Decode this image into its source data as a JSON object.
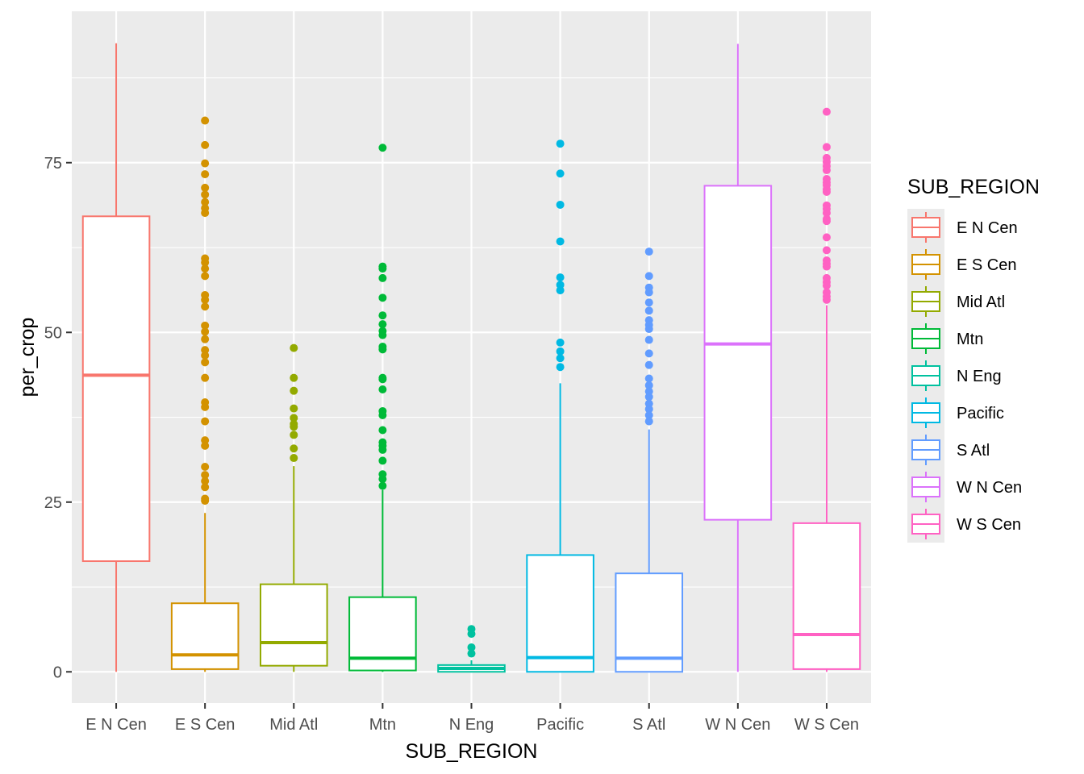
{
  "chart_data": {
    "type": "boxplot",
    "title": "",
    "xlabel": "SUB_REGION",
    "ylabel": "per_crop",
    "ylim": [
      -4.6,
      97.3
    ],
    "yticks": [
      0,
      25,
      50,
      75
    ],
    "grid": true,
    "legend": {
      "title": "SUB_REGION",
      "placement": "right"
    },
    "categories": [
      "E N Cen",
      "E S Cen",
      "Mid Atl",
      "Mtn",
      "N Eng",
      "Pacific",
      "S Atl",
      "W N Cen",
      "W S Cen"
    ],
    "colors": [
      "#F8766D",
      "#D39200",
      "#93AA00",
      "#00BA38",
      "#00C19F",
      "#00B9E3",
      "#619CFF",
      "#DB72FB",
      "#FF61C3"
    ],
    "series": [
      {
        "name": "E N Cen",
        "whisker_low": 0,
        "q1": 16.3,
        "median": 43.7,
        "q3": 67.1,
        "whisker_high": 92.6,
        "outliers": []
      },
      {
        "name": "E S Cen",
        "whisker_low": 0,
        "q1": 0.4,
        "median": 2.5,
        "q3": 10.1,
        "whisker_high": 23.4,
        "outliers": [
          81.2,
          77.6,
          74.9,
          73.3,
          71.3,
          70.3,
          69.2,
          68.3,
          67.6,
          60.9,
          60.3,
          59.4,
          58.3,
          55.5,
          54.8,
          53.8,
          51.0,
          50.1,
          49.0,
          47.4,
          46.6,
          45.6,
          43.3,
          39.7,
          39.0,
          36.9,
          34.1,
          33.3,
          30.2,
          29.0,
          28.1,
          27.2,
          25.5,
          25.2
        ]
      },
      {
        "name": "Mid Atl",
        "whisker_low": 0,
        "q1": 0.9,
        "median": 4.3,
        "q3": 12.9,
        "whisker_high": 30.3,
        "outliers": [
          47.7,
          43.3,
          41.4,
          38.8,
          37.4,
          36.5,
          36.1,
          34.9,
          32.9,
          31.5
        ]
      },
      {
        "name": "Mtn",
        "whisker_low": 0,
        "q1": 0.2,
        "median": 2.0,
        "q3": 11.0,
        "whisker_high": 26.8,
        "outliers": [
          77.2,
          59.7,
          59.4,
          58.0,
          55.1,
          52.5,
          51.2,
          50.2,
          49.6,
          47.9,
          47.5,
          43.3,
          43.1,
          41.6,
          38.4,
          37.8,
          35.6,
          33.8,
          33.3,
          32.7,
          31.1,
          29.1,
          28.4,
          27.4
        ]
      },
      {
        "name": "N Eng",
        "whisker_low": 0,
        "q1": 0.0,
        "median": 0.5,
        "q3": 1.0,
        "whisker_high": 1.7,
        "outliers": [
          6.3,
          5.6,
          3.6,
          2.7
        ]
      },
      {
        "name": "Pacific",
        "whisker_low": 0,
        "q1": 0.0,
        "median": 2.1,
        "q3": 17.2,
        "whisker_high": 42.5,
        "outliers": [
          77.8,
          73.4,
          68.8,
          63.4,
          58.1,
          57.0,
          56.2,
          48.5,
          47.2,
          46.2,
          44.9
        ]
      },
      {
        "name": "S Atl",
        "whisker_low": 0,
        "q1": 0.0,
        "median": 2.0,
        "q3": 14.5,
        "whisker_high": 35.7,
        "outliers": [
          61.9,
          58.3,
          56.6,
          55.9,
          54.4,
          53.2,
          51.8,
          51.1,
          50.5,
          48.9,
          46.9,
          45.2,
          43.2,
          42.2,
          41.3,
          40.5,
          39.5,
          38.7,
          37.8,
          36.9
        ]
      },
      {
        "name": "W N Cen",
        "whisker_low": 0,
        "q1": 22.4,
        "median": 48.3,
        "q3": 71.6,
        "whisker_high": 92.5,
        "outliers": []
      },
      {
        "name": "W S Cen",
        "whisker_low": 0,
        "q1": 0.4,
        "median": 5.5,
        "q3": 21.9,
        "whisker_high": 54.0,
        "outliers": [
          82.5,
          77.3,
          75.7,
          75.1,
          74.5,
          73.9,
          72.6,
          72.1,
          71.7,
          71.1,
          70.7,
          68.7,
          68.2,
          67.6,
          66.7,
          66.4,
          64.0,
          62.1,
          60.6,
          60.1,
          59.7,
          58.0,
          57.4,
          56.9,
          55.9,
          55.3,
          54.8
        ]
      }
    ]
  }
}
